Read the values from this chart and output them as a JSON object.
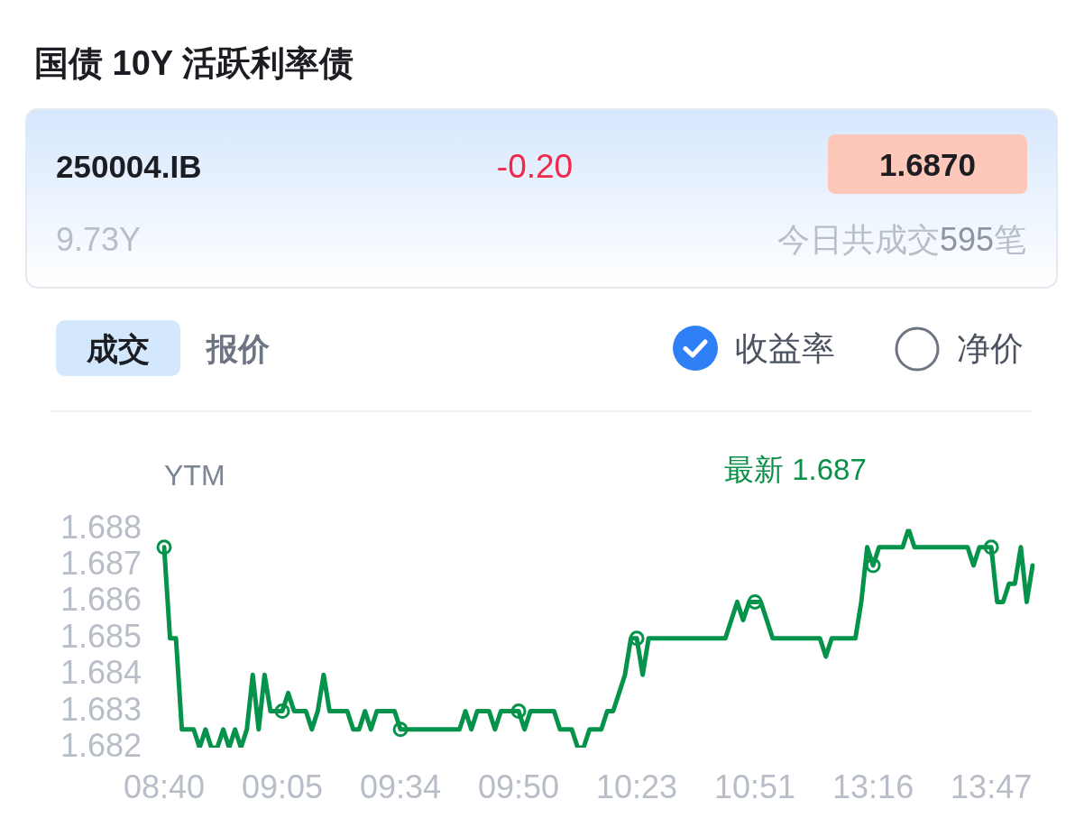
{
  "chart_data": {
    "type": "line",
    "title": "国债 10Y 活跃利率债",
    "ylabel": "YTM",
    "annotations": [
      "250004.IB",
      "-0.20",
      "1.6870",
      "9.73Y",
      "今日共成交",
      "595",
      "笔",
      "成交",
      "报价",
      "收益率",
      "净价",
      "最新 1.687"
    ],
    "categories": [
      "08:40",
      null,
      null,
      null,
      null,
      null,
      null,
      null,
      null,
      null,
      null,
      null,
      null,
      null,
      null,
      null,
      null,
      null,
      null,
      null,
      "09:05",
      null,
      null,
      null,
      null,
      null,
      null,
      null,
      null,
      null,
      null,
      null,
      null,
      null,
      null,
      null,
      null,
      null,
      null,
      null,
      "09:34",
      null,
      null,
      null,
      null,
      null,
      null,
      null,
      null,
      null,
      null,
      null,
      null,
      null,
      null,
      null,
      null,
      null,
      null,
      null,
      "09:50",
      null,
      null,
      null,
      null,
      null,
      null,
      null,
      null,
      null,
      null,
      null,
      null,
      null,
      null,
      null,
      null,
      null,
      null,
      null,
      "10:23",
      null,
      null,
      null,
      null,
      null,
      null,
      null,
      null,
      null,
      null,
      null,
      null,
      null,
      null,
      null,
      null,
      null,
      null,
      null,
      "10:51",
      null,
      null,
      null,
      null,
      null,
      null,
      null,
      null,
      null,
      null,
      null,
      null,
      null,
      null,
      null,
      null,
      null,
      null,
      null,
      "13:16",
      null,
      null,
      null,
      null,
      null,
      null,
      null,
      null,
      null,
      null,
      null,
      null,
      null,
      null,
      null,
      null,
      null,
      null,
      null,
      "13:47",
      null,
      null,
      null,
      null,
      null,
      null,
      null
    ],
    "series": [
      {
        "color": "#05924b",
        "values": [
          1.6875,
          1.685,
          1.685,
          1.6825,
          1.6825,
          1.6825,
          1.682,
          1.6825,
          1.682,
          1.682,
          1.6825,
          1.682,
          1.6825,
          1.682,
          1.6825,
          1.684,
          1.6825,
          1.684,
          1.683,
          1.683,
          1.683,
          1.6835,
          1.683,
          1.683,
          1.683,
          1.6825,
          1.683,
          1.684,
          1.683,
          1.683,
          1.683,
          1.683,
          1.6825,
          1.6825,
          1.683,
          1.6825,
          1.683,
          1.683,
          1.683,
          1.683,
          1.6825,
          1.6825,
          1.6825,
          1.6825,
          1.6825,
          1.6825,
          1.6825,
          1.6825,
          1.6825,
          1.6825,
          1.6825,
          1.683,
          1.6825,
          1.683,
          1.683,
          1.683,
          1.6825,
          1.683,
          1.683,
          1.683,
          1.683,
          1.6825,
          1.683,
          1.683,
          1.683,
          1.683,
          1.683,
          1.6825,
          1.6825,
          1.6825,
          1.682,
          1.682,
          1.6825,
          1.6825,
          1.6825,
          1.683,
          1.683,
          1.6835,
          1.684,
          1.685,
          1.685,
          1.684,
          1.685,
          1.685,
          1.685,
          1.685,
          1.685,
          1.685,
          1.685,
          1.685,
          1.685,
          1.685,
          1.685,
          1.685,
          1.685,
          1.685,
          1.6855,
          1.686,
          1.6855,
          1.686,
          1.686,
          1.686,
          1.6855,
          1.685,
          1.685,
          1.685,
          1.685,
          1.685,
          1.685,
          1.685,
          1.685,
          1.685,
          1.6845,
          1.685,
          1.685,
          1.685,
          1.685,
          1.685,
          1.686,
          1.6875,
          1.687,
          1.6875,
          1.6875,
          1.6875,
          1.6875,
          1.6875,
          1.688,
          1.6875,
          1.6875,
          1.6875,
          1.6875,
          1.6875,
          1.6875,
          1.6875,
          1.6875,
          1.6875,
          1.6875,
          1.687,
          1.6875,
          1.6875,
          1.6875,
          1.686,
          1.686,
          1.6865,
          1.6865,
          1.6875,
          1.686,
          1.687
        ]
      },
      {
        "type": "scatter",
        "marker": "circle",
        "color": "#05924b",
        "x": [
          "08:40",
          "09:05",
          "09:34",
          "09:50",
          "10:23",
          "10:51",
          "13:16",
          "13:47"
        ],
        "values": [
          1.6875,
          1.683,
          1.6825,
          1.683,
          1.685,
          1.686,
          1.687,
          1.6875
        ]
      }
    ],
    "ylim": [
      1.682,
      1.688
    ],
    "yticks": [
      1.682,
      1.683,
      1.684,
      1.685,
      1.686,
      1.687,
      1.688
    ]
  }
}
